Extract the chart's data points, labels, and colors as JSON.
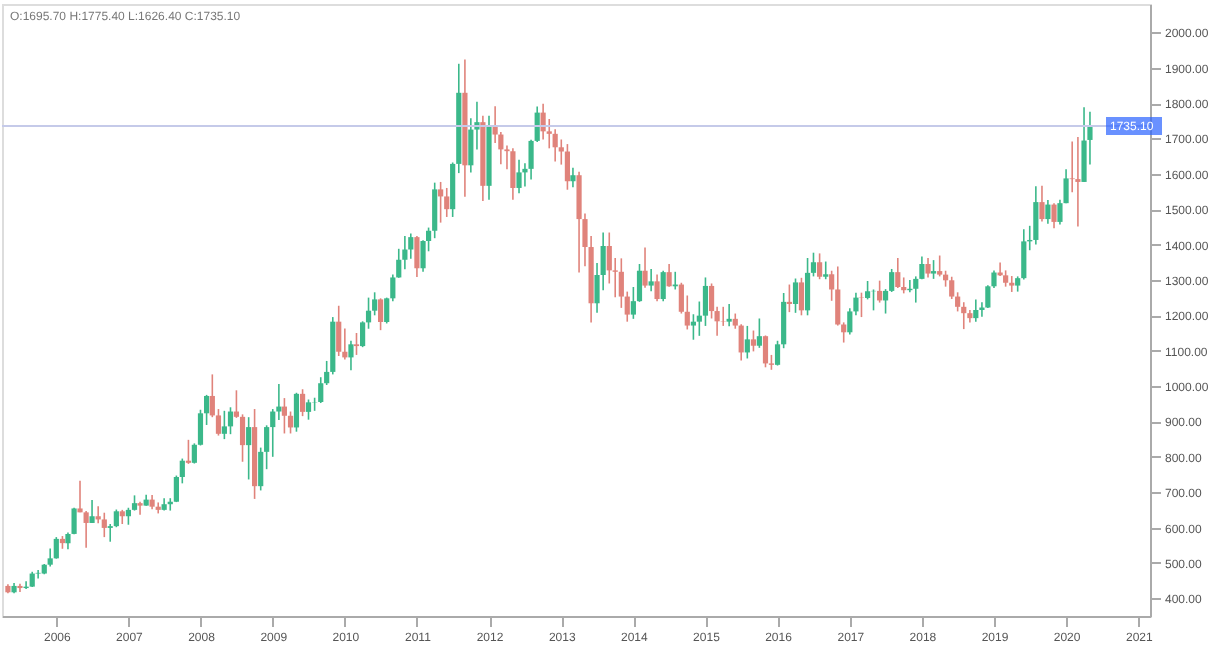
{
  "chart_data": {
    "type": "candlestick",
    "annotations": [
      "O:1695.70 H:1775.40 L:1626.40 C:1735.10"
    ],
    "xlim": [
      "2005-04",
      "2021-03"
    ],
    "xticks": [
      "2006",
      "2007",
      "2008",
      "2009",
      "2010",
      "2011",
      "2012",
      "2013",
      "2014",
      "2015",
      "2016",
      "2017",
      "2018",
      "2019",
      "2020",
      "2021"
    ],
    "ylim": [
      350,
      2080
    ],
    "yticks": [
      {
        "value": 400,
        "label": "400.00"
      },
      {
        "value": 500,
        "label": "500.00"
      },
      {
        "value": 600,
        "label": "600.00"
      },
      {
        "value": 700,
        "label": "700.00"
      },
      {
        "value": 800,
        "label": "800.00"
      },
      {
        "value": 900,
        "label": "900.00"
      },
      {
        "value": 1000,
        "label": "1000.00"
      },
      {
        "value": 1100,
        "label": "1100.00"
      },
      {
        "value": 1200,
        "label": "1200.00"
      },
      {
        "value": 1300,
        "label": "1300.00"
      },
      {
        "value": 1400,
        "label": "1400.00"
      },
      {
        "value": 1500,
        "label": "1500.00"
      },
      {
        "value": 1600,
        "label": "1600.00"
      },
      {
        "value": 1700,
        "label": "1700.00"
      },
      {
        "value": 1800,
        "label": "1800.00"
      },
      {
        "value": 1900,
        "label": "1900.00"
      },
      {
        "value": 2000,
        "label": "2000.00"
      }
    ],
    "grid": false,
    "ref_lines": [
      {
        "axis": "y",
        "value": 1735.1,
        "label": "1735.10",
        "color": "#c5cae9"
      }
    ],
    "series": [
      {
        "color": "#3bb88a",
        "x": [
          "2005-06",
          "2005-08",
          "2005-09",
          "2005-10",
          "2005-11",
          "2005-12",
          "2006-01",
          "2006-03",
          "2006-04",
          "2006-07",
          "2006-10",
          "2006-11",
          "2007-01",
          "2007-02",
          "2007-04",
          "2007-07",
          "2007-08",
          "2007-09",
          "2007-10",
          "2007-12",
          "2008-01",
          "2008-02",
          "2008-05",
          "2008-06",
          "2008-09",
          "2008-11",
          "2008-12",
          "2009-01",
          "2009-02",
          "2009-05",
          "2009-07",
          "2009-08",
          "2009-09",
          "2009-10",
          "2009-11",
          "2010-02",
          "2010-04",
          "2010-05",
          "2010-06",
          "2010-08",
          "2010-09",
          "2010-10",
          "2010-11",
          "2010-12",
          "2011-02",
          "2011-03",
          "2011-04",
          "2011-07",
          "2011-08",
          "2011-10",
          "2011-11",
          "2012-01",
          "2012-06",
          "2012-07",
          "2012-08",
          "2012-09",
          "2013-03",
          "2013-07",
          "2013-08",
          "2014-01",
          "2014-02",
          "2014-04",
          "2014-06",
          "2014-08",
          "2014-11",
          "2014-12",
          "2015-01",
          "2015-05",
          "2015-08",
          "2015-10",
          "2016-01",
          "2016-02",
          "2016-04",
          "2016-06",
          "2016-07",
          "2016-09",
          "2017-01",
          "2017-02",
          "2017-04",
          "2017-05",
          "2017-07",
          "2017-08",
          "2017-11",
          "2017-12",
          "2018-01",
          "2018-03",
          "2018-10",
          "2018-11",
          "2018-12",
          "2019-01",
          "2019-05",
          "2019-06",
          "2019-07",
          "2019-08",
          "2019-10",
          "2019-12",
          "2020-01",
          "2020-04",
          "2020-05"
        ],
        "ohlc": [
          [
            417,
            443,
            414,
            435
          ],
          [
            429,
            448,
            426,
            433
          ],
          [
            433,
            475,
            432,
            470
          ],
          [
            470,
            480,
            456,
            472
          ],
          [
            470,
            497,
            468,
            495
          ],
          [
            495,
            541,
            490,
            513
          ],
          [
            513,
            573,
            512,
            568
          ],
          [
            556,
            586,
            539,
            582
          ],
          [
            582,
            656,
            581,
            654
          ],
          [
            613,
            678,
            613,
            632
          ],
          [
            599,
            610,
            560,
            604
          ],
          [
            604,
            651,
            601,
            646
          ],
          [
            632,
            656,
            608,
            650
          ],
          [
            650,
            691,
            648,
            669
          ],
          [
            662,
            693,
            662,
            679
          ],
          [
            650,
            683,
            648,
            666
          ],
          [
            666,
            683,
            648,
            673
          ],
          [
            673,
            747,
            672,
            743
          ],
          [
            743,
            795,
            725,
            789
          ],
          [
            783,
            838,
            781,
            834
          ],
          [
            834,
            933,
            832,
            923
          ],
          [
            923,
            975,
            890,
            972
          ],
          [
            865,
            930,
            850,
            886
          ],
          [
            886,
            940,
            864,
            928
          ],
          [
            833,
            912,
            736,
            884
          ],
          [
            717,
            826,
            705,
            814
          ],
          [
            814,
            889,
            765,
            884
          ],
          [
            884,
            935,
            800,
            928
          ],
          [
            928,
            1006,
            904,
            942
          ],
          [
            883,
            981,
            871,
            978
          ],
          [
            927,
            962,
            905,
            954
          ],
          [
            954,
            967,
            930,
            955
          ],
          [
            955,
            1025,
            952,
            1008
          ],
          [
            1008,
            1071,
            1003,
            1040
          ],
          [
            1040,
            1195,
            1033,
            1182
          ],
          [
            1081,
            1128,
            1045,
            1118
          ],
          [
            1113,
            1183,
            1110,
            1180
          ],
          [
            1180,
            1250,
            1162,
            1213
          ],
          [
            1213,
            1265,
            1200,
            1245
          ],
          [
            1181,
            1250,
            1177,
            1248
          ],
          [
            1248,
            1315,
            1240,
            1307
          ],
          [
            1307,
            1388,
            1306,
            1357
          ],
          [
            1357,
            1424,
            1330,
            1386
          ],
          [
            1386,
            1431,
            1360,
            1421
          ],
          [
            1333,
            1412,
            1323,
            1410
          ],
          [
            1410,
            1448,
            1381,
            1439
          ],
          [
            1439,
            1575,
            1418,
            1556
          ],
          [
            1500,
            1632,
            1478,
            1628
          ],
          [
            1628,
            1911,
            1602,
            1829
          ],
          [
            1624,
            1757,
            1604,
            1725
          ],
          [
            1725,
            1804,
            1669,
            1746
          ],
          [
            1566,
            1764,
            1527,
            1738
          ],
          [
            1560,
            1640,
            1545,
            1604
          ],
          [
            1604,
            1630,
            1564,
            1614
          ],
          [
            1614,
            1696,
            1584,
            1693
          ],
          [
            1693,
            1790,
            1690,
            1773
          ],
          [
            1579,
            1617,
            1562,
            1596
          ],
          [
            1234,
            1348,
            1207,
            1314
          ],
          [
            1314,
            1434,
            1271,
            1396
          ],
          [
            1202,
            1280,
            1190,
            1240
          ],
          [
            1240,
            1345,
            1238,
            1326
          ],
          [
            1284,
            1331,
            1268,
            1296
          ],
          [
            1246,
            1326,
            1240,
            1322
          ],
          [
            1282,
            1323,
            1273,
            1287
          ],
          [
            1171,
            1203,
            1131,
            1182
          ],
          [
            1182,
            1239,
            1142,
            1199
          ],
          [
            1199,
            1307,
            1170,
            1283
          ],
          [
            1182,
            1232,
            1169,
            1190
          ],
          [
            1095,
            1170,
            1078,
            1132
          ],
          [
            1114,
            1191,
            1108,
            1141
          ],
          [
            1060,
            1128,
            1058,
            1118
          ],
          [
            1118,
            1263,
            1107,
            1238
          ],
          [
            1232,
            1304,
            1207,
            1293
          ],
          [
            1214,
            1362,
            1200,
            1320
          ],
          [
            1320,
            1377,
            1310,
            1350
          ],
          [
            1309,
            1352,
            1302,
            1316
          ],
          [
            1152,
            1220,
            1146,
            1211
          ],
          [
            1211,
            1264,
            1200,
            1250
          ],
          [
            1249,
            1297,
            1245,
            1268
          ],
          [
            1268,
            1273,
            1214,
            1269
          ],
          [
            1242,
            1274,
            1205,
            1269
          ],
          [
            1269,
            1331,
            1266,
            1322
          ],
          [
            1271,
            1300,
            1265,
            1275
          ],
          [
            1275,
            1310,
            1236,
            1303
          ],
          [
            1303,
            1366,
            1302,
            1345
          ],
          [
            1318,
            1356,
            1303,
            1325
          ],
          [
            1192,
            1245,
            1182,
            1215
          ],
          [
            1215,
            1237,
            1196,
            1222
          ],
          [
            1222,
            1285,
            1221,
            1282
          ],
          [
            1282,
            1327,
            1277,
            1321
          ],
          [
            1284,
            1310,
            1267,
            1305
          ],
          [
            1305,
            1443,
            1301,
            1409
          ],
          [
            1409,
            1453,
            1384,
            1413
          ],
          [
            1413,
            1565,
            1400,
            1520
          ],
          [
            1472,
            1526,
            1459,
            1513
          ],
          [
            1464,
            1527,
            1457,
            1517
          ],
          [
            1517,
            1613,
            1517,
            1587
          ],
          [
            1577,
            1788,
            1577,
            1694
          ],
          [
            1695.7,
            1775.4,
            1626.4,
            1735.1
          ]
        ]
      },
      {
        "color": "#e0837b",
        "x": [
          "2005-05",
          "2005-07",
          "2006-02",
          "2006-05",
          "2006-06",
          "2006-08",
          "2006-09",
          "2006-12",
          "2007-03",
          "2007-05",
          "2007-06",
          "2007-11",
          "2008-03",
          "2008-04",
          "2008-07",
          "2008-08",
          "2008-10",
          "2009-03",
          "2009-04",
          "2009-06",
          "2009-12",
          "2010-01",
          "2010-03",
          "2010-07",
          "2011-01",
          "2011-05",
          "2011-06",
          "2011-09",
          "2011-12",
          "2012-02",
          "2012-03",
          "2012-04",
          "2012-05",
          "2012-10",
          "2012-11",
          "2012-12",
          "2013-01",
          "2013-02",
          "2013-04",
          "2013-05",
          "2013-06",
          "2013-09",
          "2013-10",
          "2013-11",
          "2013-12",
          "2014-03",
          "2014-05",
          "2014-07",
          "2014-09",
          "2014-10",
          "2015-02",
          "2015-03",
          "2015-04",
          "2015-06",
          "2015-07",
          "2015-09",
          "2015-11",
          "2015-12",
          "2016-03",
          "2016-05",
          "2016-08",
          "2016-10",
          "2016-11",
          "2016-12",
          "2017-03",
          "2017-06",
          "2017-09",
          "2017-10",
          "2018-02",
          "2018-04",
          "2018-05",
          "2018-06",
          "2018-07",
          "2018-08",
          "2018-09",
          "2019-02",
          "2019-03",
          "2019-04",
          "2019-09",
          "2019-11",
          "2020-02",
          "2020-03"
        ],
        "ohlc": [
          [
            435,
            440,
            414,
            417
          ],
          [
            435,
            441,
            418,
            429
          ],
          [
            568,
            576,
            540,
            556
          ],
          [
            654,
            732,
            643,
            643
          ],
          [
            643,
            647,
            543,
            613
          ],
          [
            632,
            660,
            612,
            623
          ],
          [
            623,
            642,
            573,
            599
          ],
          [
            646,
            650,
            610,
            632
          ],
          [
            669,
            673,
            636,
            662
          ],
          [
            679,
            692,
            652,
            659
          ],
          [
            659,
            671,
            640,
            650
          ],
          [
            789,
            848,
            780,
            783
          ],
          [
            972,
            1033,
            912,
            917
          ],
          [
            917,
            935,
            860,
            865
          ],
          [
            928,
            988,
            910,
            913
          ],
          [
            913,
            920,
            786,
            833
          ],
          [
            884,
            935,
            681,
            717
          ],
          [
            942,
            966,
            866,
            916
          ],
          [
            916,
            928,
            866,
            883
          ],
          [
            978,
            991,
            915,
            927
          ],
          [
            1182,
            1227,
            1085,
            1097
          ],
          [
            1097,
            1163,
            1075,
            1081
          ],
          [
            1118,
            1150,
            1088,
            1113
          ],
          [
            1245,
            1248,
            1158,
            1181
          ],
          [
            1421,
            1424,
            1308,
            1333
          ],
          [
            1556,
            1577,
            1462,
            1536
          ],
          [
            1536,
            1560,
            1478,
            1500
          ],
          [
            1829,
            1923,
            1535,
            1624
          ],
          [
            1746,
            1764,
            1523,
            1566
          ],
          [
            1738,
            1791,
            1687,
            1711
          ],
          [
            1711,
            1718,
            1627,
            1669
          ],
          [
            1669,
            1680,
            1613,
            1664
          ],
          [
            1664,
            1672,
            1527,
            1560
          ],
          [
            1773,
            1798,
            1697,
            1720
          ],
          [
            1720,
            1755,
            1672,
            1713
          ],
          [
            1713,
            1726,
            1635,
            1675
          ],
          [
            1675,
            1697,
            1626,
            1663
          ],
          [
            1663,
            1684,
            1555,
            1579
          ],
          [
            1596,
            1606,
            1321,
            1472
          ],
          [
            1472,
            1488,
            1339,
            1393
          ],
          [
            1393,
            1424,
            1180,
            1234
          ],
          [
            1396,
            1434,
            1290,
            1327
          ],
          [
            1327,
            1362,
            1251,
            1323
          ],
          [
            1323,
            1361,
            1221,
            1253
          ],
          [
            1253,
            1267,
            1182,
            1202
          ],
          [
            1326,
            1392,
            1278,
            1284
          ],
          [
            1296,
            1315,
            1240,
            1246
          ],
          [
            1322,
            1345,
            1281,
            1282
          ],
          [
            1287,
            1292,
            1205,
            1210
          ],
          [
            1210,
            1256,
            1160,
            1171
          ],
          [
            1283,
            1290,
            1191,
            1212
          ],
          [
            1212,
            1224,
            1142,
            1183
          ],
          [
            1183,
            1224,
            1170,
            1182
          ],
          [
            1190,
            1205,
            1162,
            1171
          ],
          [
            1171,
            1175,
            1072,
            1095
          ],
          [
            1132,
            1157,
            1098,
            1114
          ],
          [
            1141,
            1143,
            1053,
            1064
          ],
          [
            1064,
            1088,
            1046,
            1060
          ],
          [
            1238,
            1287,
            1209,
            1232
          ],
          [
            1293,
            1306,
            1200,
            1214
          ],
          [
            1350,
            1375,
            1302,
            1309
          ],
          [
            1316,
            1326,
            1241,
            1273
          ],
          [
            1273,
            1338,
            1171,
            1174
          ],
          [
            1174,
            1180,
            1123,
            1152
          ],
          [
            1250,
            1264,
            1195,
            1249
          ],
          [
            1269,
            1298,
            1236,
            1242
          ],
          [
            1322,
            1362,
            1277,
            1280
          ],
          [
            1280,
            1307,
            1262,
            1271
          ],
          [
            1345,
            1362,
            1307,
            1318
          ],
          [
            1325,
            1369,
            1310,
            1315
          ],
          [
            1315,
            1326,
            1281,
            1299
          ],
          [
            1299,
            1309,
            1246,
            1253
          ],
          [
            1253,
            1265,
            1211,
            1224
          ],
          [
            1224,
            1237,
            1161,
            1206
          ],
          [
            1206,
            1215,
            1180,
            1192
          ],
          [
            1321,
            1349,
            1311,
            1313
          ],
          [
            1313,
            1327,
            1281,
            1292
          ],
          [
            1292,
            1311,
            1266,
            1284
          ],
          [
            1520,
            1566,
            1465,
            1472
          ],
          [
            1513,
            1517,
            1446,
            1464
          ],
          [
            1587,
            1691,
            1548,
            1585
          ],
          [
            1585,
            1704,
            1451,
            1577
          ]
        ]
      }
    ]
  }
}
